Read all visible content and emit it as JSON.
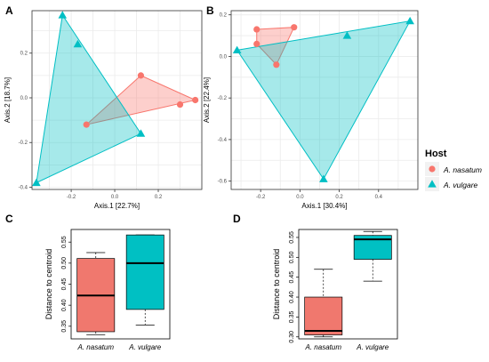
{
  "colors": {
    "nasatum": "#f8766d",
    "vulgare": "#00bfc4",
    "nasatum_box": "#f0786e",
    "vulgare_box": "#00c0c3",
    "grid": "#ebebeb",
    "frame": "#333333",
    "axis_text": "#4d4d4d"
  },
  "legend": {
    "title": "Host",
    "items": [
      "A. nasatum",
      "A. vulgare"
    ],
    "placement": "right"
  },
  "chart_data": [
    {
      "panel": "A",
      "type": "scatter",
      "xlabel": "Axis.1   [22.7%]",
      "ylabel": "Axis.2   [18.7%]",
      "xlim": [
        -0.38,
        0.4
      ],
      "ylim": [
        -0.41,
        0.39
      ],
      "xticks": [
        -0.2,
        0.0,
        0.2
      ],
      "xtick_labels": [
        "-0.2",
        "0.0",
        "0.2"
      ],
      "yticks": [
        -0.4,
        -0.2,
        0.0,
        0.2
      ],
      "ytick_labels": [
        "-0.4",
        "-0.2",
        "0.0",
        "0.2"
      ],
      "grid": true,
      "series": [
        {
          "name": "A. nasatum",
          "marker": "circle",
          "points": [
            [
              -0.13,
              -0.12
            ],
            [
              0.12,
              0.1
            ],
            [
              0.3,
              -0.03
            ],
            [
              0.37,
              -0.01
            ]
          ],
          "hull": [
            [
              -0.13,
              -0.12
            ],
            [
              0.12,
              0.1
            ],
            [
              0.37,
              -0.01
            ]
          ]
        },
        {
          "name": "A. vulgare",
          "marker": "triangle",
          "points": [
            [
              -0.24,
              0.37
            ],
            [
              -0.17,
              0.24
            ],
            [
              0.12,
              -0.16
            ],
            [
              -0.36,
              -0.38
            ]
          ],
          "hull": [
            [
              -0.24,
              0.37
            ],
            [
              0.12,
              -0.16
            ],
            [
              -0.36,
              -0.38
            ]
          ]
        }
      ]
    },
    {
      "panel": "B",
      "type": "scatter",
      "xlabel": "Axis.1   [30.4%]",
      "ylabel": "Axis.2   [22.4%]",
      "xlim": [
        -0.35,
        0.6
      ],
      "ylim": [
        -0.64,
        0.22
      ],
      "xticks": [
        -0.2,
        0.0,
        0.2,
        0.4
      ],
      "xtick_labels": [
        "-0.2",
        "0.0",
        "0.2",
        "0.4"
      ],
      "yticks": [
        -0.6,
        -0.4,
        -0.2,
        0.0,
        0.2
      ],
      "ytick_labels": [
        "-0.6",
        "-0.4",
        "-0.2",
        "0.0",
        "0.2"
      ],
      "grid": true,
      "series": [
        {
          "name": "A. nasatum",
          "marker": "circle",
          "points": [
            [
              -0.22,
              0.13
            ],
            [
              -0.03,
              0.14
            ],
            [
              -0.22,
              0.06
            ],
            [
              -0.12,
              -0.04
            ]
          ],
          "hull": [
            [
              -0.22,
              0.13
            ],
            [
              -0.03,
              0.14
            ],
            [
              -0.12,
              -0.04
            ],
            [
              -0.22,
              0.06
            ]
          ]
        },
        {
          "name": "A. vulgare",
          "marker": "triangle",
          "points": [
            [
              -0.32,
              0.03
            ],
            [
              0.24,
              0.1
            ],
            [
              0.56,
              0.17
            ],
            [
              0.12,
              -0.59
            ]
          ],
          "hull": [
            [
              -0.32,
              0.03
            ],
            [
              0.56,
              0.17
            ],
            [
              0.12,
              -0.59
            ]
          ]
        }
      ]
    },
    {
      "panel": "C",
      "type": "box",
      "ylabel": "Distance to centroid",
      "categories": [
        "A. nasatum",
        "A. vulgare"
      ],
      "ylim": [
        0.32,
        0.58
      ],
      "yticks": [
        0.35,
        0.4,
        0.45,
        0.5,
        0.55
      ],
      "ytick_labels": [
        "0.35",
        "0.40",
        "0.45",
        "0.50",
        "0.55"
      ],
      "boxes": [
        {
          "name": "A. nasatum",
          "min": 0.33,
          "q1": 0.337,
          "median": 0.423,
          "q3": 0.511,
          "max": 0.525
        },
        {
          "name": "A. vulgare",
          "min": 0.353,
          "q1": 0.39,
          "median": 0.5,
          "q3": 0.567,
          "max": 0.567
        }
      ]
    },
    {
      "panel": "D",
      "type": "box",
      "ylabel": "Distance to centroid",
      "categories": [
        "A. nasatum",
        "A. vulgare"
      ],
      "ylim": [
        0.295,
        0.57
      ],
      "yticks": [
        0.3,
        0.35,
        0.4,
        0.45,
        0.5,
        0.55
      ],
      "ytick_labels": [
        "0.30",
        "0.35",
        "0.40",
        "0.45",
        "0.50",
        "0.55"
      ],
      "boxes": [
        {
          "name": "A. nasatum",
          "min": 0.3,
          "q1": 0.305,
          "median": 0.315,
          "q3": 0.4,
          "max": 0.47
        },
        {
          "name": "A. vulgare",
          "min": 0.44,
          "q1": 0.495,
          "median": 0.545,
          "q3": 0.555,
          "max": 0.565
        }
      ]
    }
  ]
}
